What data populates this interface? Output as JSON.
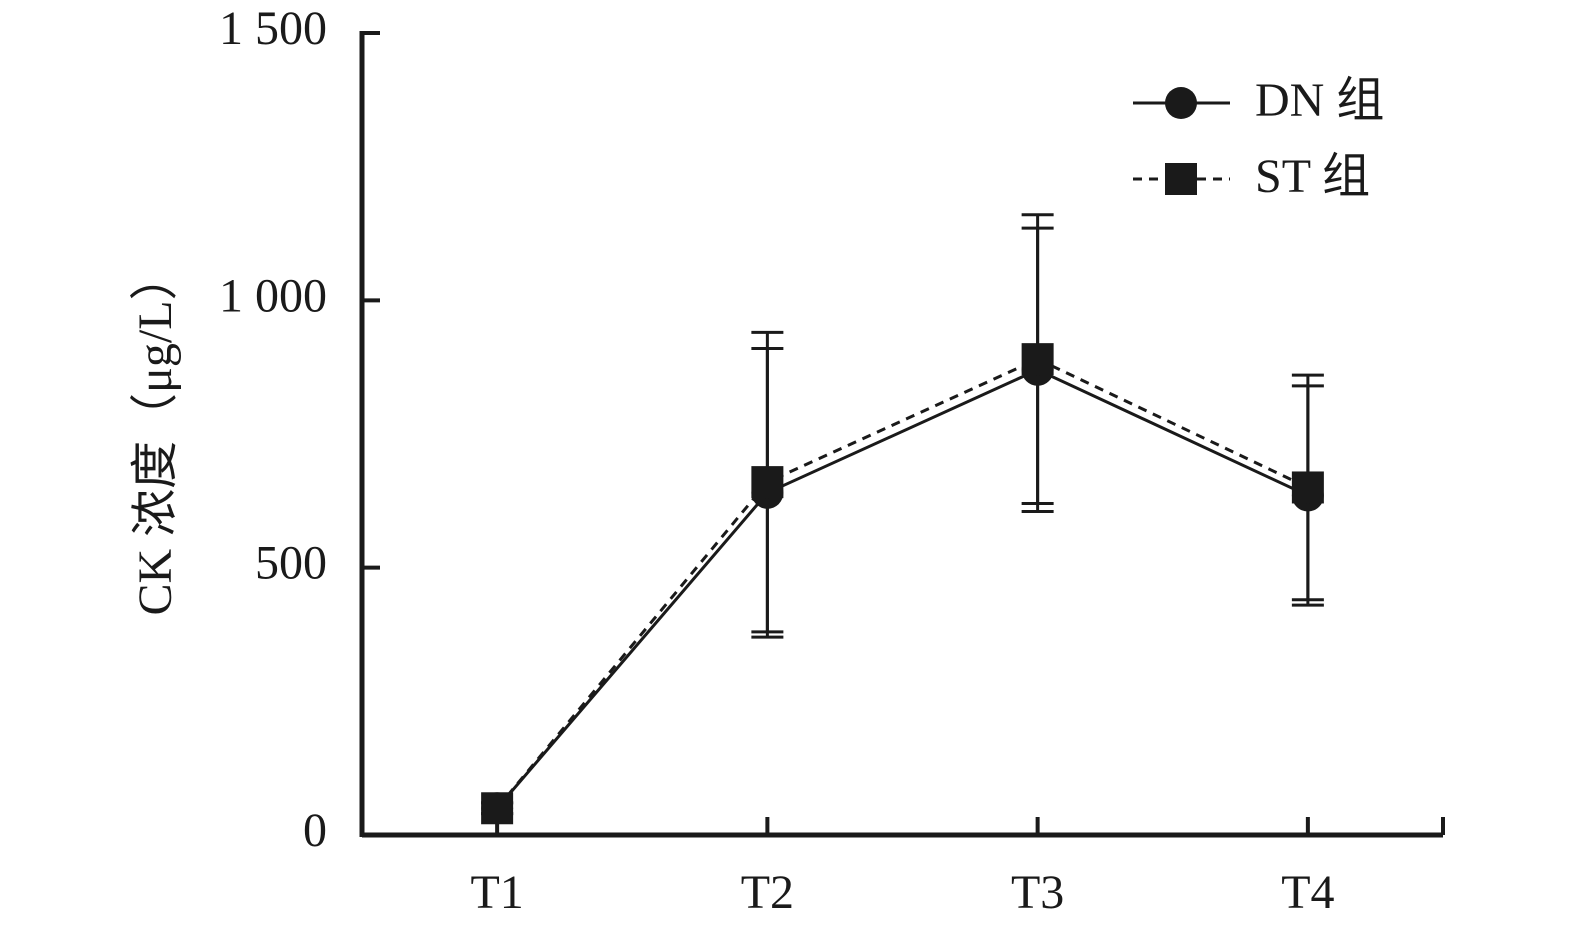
{
  "chart_data": {
    "type": "line",
    "y_label": "CK 浓度（μg/L）",
    "categories": [
      "T1",
      "T2",
      "T3",
      "T4"
    ],
    "series": [
      {
        "name": "DN 组",
        "color": "#1a1a1a",
        "marker": "circle",
        "line_style": "solid",
        "values": [
          50,
          640,
          870,
          635
        ],
        "errors": [
          10,
          270,
          265,
          205
        ]
      },
      {
        "name": "ST 组",
        "color": "#1a1a1a",
        "marker": "square",
        "line_style": "dashed",
        "values": [
          50,
          660,
          890,
          650
        ],
        "errors": [
          10,
          280,
          270,
          210
        ]
      }
    ],
    "ylim": [
      0,
      1500
    ],
    "yticks": [
      0,
      500,
      {
        "value": 1000,
        "label": "1 000"
      },
      {
        "value": 1500,
        "label": "1 500"
      }
    ],
    "legend": "upper right"
  }
}
